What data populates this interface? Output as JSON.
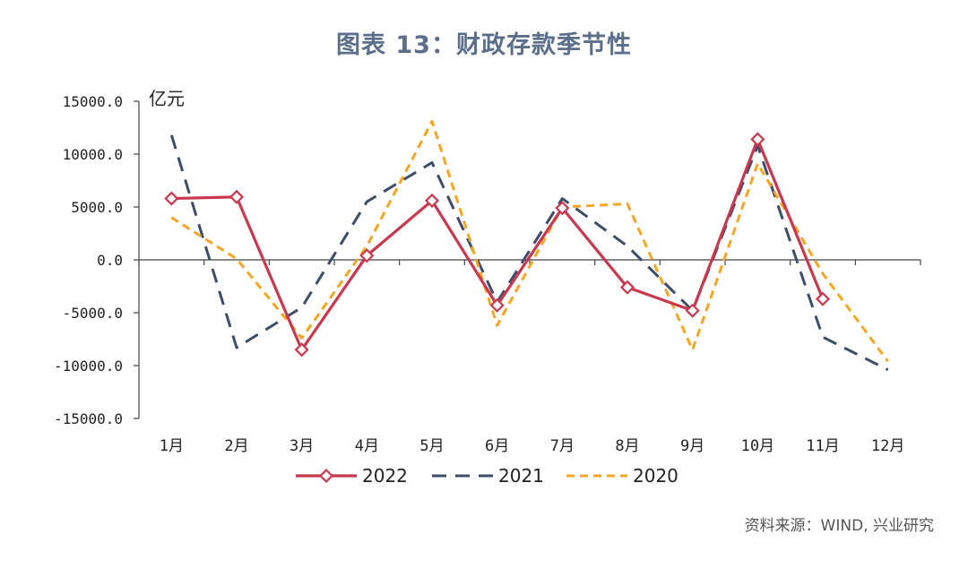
{
  "title": "图表 13：财政存款季节性",
  "source": "资料来源：WIND, 兴业研究",
  "chart_data": {
    "type": "line",
    "unit": "亿元",
    "categories": [
      "1月",
      "2月",
      "3月",
      "4月",
      "5月",
      "6月",
      "7月",
      "8月",
      "9月",
      "10月",
      "11月",
      "12月"
    ],
    "ylim": [
      -15000,
      15000
    ],
    "yticks": [
      "15000.0",
      "10000.0",
      "5000.0",
      "0.0",
      "-5000.0",
      "-10000.0",
      "-15000.0"
    ],
    "grid": false,
    "legend_position": "bottom",
    "series": [
      {
        "name": "2022",
        "color": "#c9384f",
        "style": "solid-diamond",
        "values": [
          5800,
          5950,
          -8500,
          400,
          5600,
          -4300,
          4900,
          -2600,
          -4800,
          11400,
          -3700,
          null
        ]
      },
      {
        "name": "2021",
        "color": "#3e4d68",
        "style": "dashed",
        "values": [
          11800,
          -8300,
          -4500,
          5500,
          9200,
          -4000,
          5800,
          1300,
          -4800,
          10800,
          -7300,
          -10400
        ]
      },
      {
        "name": "2020",
        "color": "#f5a623",
        "style": "dashed-short",
        "values": [
          4000,
          100,
          -7400,
          1300,
          13100,
          -6200,
          5000,
          5300,
          -8500,
          9100,
          -1300,
          -9600
        ]
      }
    ]
  }
}
